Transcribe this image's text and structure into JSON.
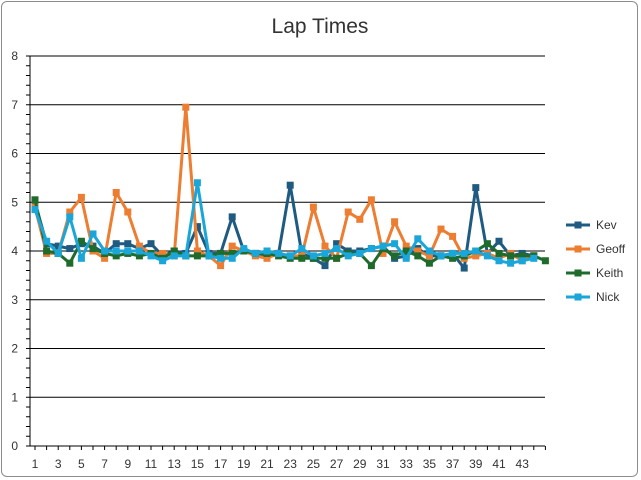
{
  "chart_data": {
    "type": "line",
    "title": "Lap Times",
    "xlabel": "",
    "ylabel": "",
    "ylim": [
      0,
      8
    ],
    "yticks": [
      0,
      1,
      2,
      3,
      4,
      5,
      6,
      7,
      8
    ],
    "xlim": [
      1,
      45
    ],
    "xtick_labels": [
      1,
      3,
      5,
      7,
      9,
      11,
      13,
      15,
      17,
      19,
      21,
      23,
      25,
      27,
      29,
      31,
      33,
      35,
      37,
      39,
      41,
      43
    ],
    "grid": "horizontal",
    "legend_position": "right",
    "series": [
      {
        "name": "Kev",
        "color": "#1f5a80",
        "x": [
          1,
          2,
          3,
          4,
          5,
          6,
          7,
          8,
          9,
          10,
          11,
          12,
          13,
          14,
          15,
          16,
          17,
          18,
          19,
          20,
          21,
          22,
          23,
          24,
          25,
          26,
          27,
          28,
          29,
          30,
          31,
          32,
          33,
          34,
          35,
          36,
          37,
          38,
          39,
          40,
          41,
          42,
          43,
          44
        ],
        "values": [
          5.0,
          4.15,
          4.1,
          4.05,
          4.15,
          4.1,
          3.95,
          4.15,
          4.15,
          4.05,
          4.15,
          3.9,
          4.0,
          3.95,
          4.5,
          3.95,
          3.95,
          4.7,
          4.0,
          3.95,
          3.9,
          3.95,
          5.35,
          3.95,
          3.85,
          3.7,
          4.15,
          4.0,
          4.0,
          4.05,
          4.1,
          3.85,
          3.9,
          4.05,
          3.9,
          3.9,
          3.95,
          3.65,
          5.3,
          3.95,
          4.2,
          3.9,
          3.95,
          3.9
        ]
      },
      {
        "name": "Geoff",
        "color": "#ed7d31",
        "x": [
          1,
          2,
          3,
          4,
          5,
          6,
          7,
          8,
          9,
          10,
          11,
          12,
          13,
          14,
          15,
          16,
          17,
          18,
          19,
          20,
          21,
          22,
          23,
          24,
          25,
          26,
          27,
          28,
          29,
          30,
          31,
          32,
          33,
          34,
          35,
          36,
          37,
          38,
          39,
          40,
          41,
          42,
          43,
          44
        ],
        "values": [
          4.9,
          3.95,
          3.95,
          4.8,
          5.1,
          4.0,
          3.85,
          5.2,
          4.8,
          4.1,
          3.95,
          3.95,
          3.9,
          6.95,
          4.0,
          3.9,
          3.7,
          4.1,
          4.0,
          3.9,
          3.85,
          3.95,
          3.9,
          3.9,
          4.9,
          4.1,
          3.85,
          4.8,
          4.65,
          5.05,
          3.95,
          4.6,
          4.1,
          4.0,
          3.9,
          4.45,
          4.3,
          3.85,
          3.9,
          3.95,
          3.85,
          3.95,
          3.8,
          3.9
        ]
      },
      {
        "name": "Keith",
        "color": "#1e6b2c",
        "x": [
          1,
          2,
          3,
          4,
          5,
          6,
          7,
          8,
          9,
          10,
          11,
          12,
          13,
          14,
          15,
          16,
          17,
          18,
          19,
          20,
          21,
          22,
          23,
          24,
          25,
          26,
          27,
          28,
          29,
          30,
          31,
          32,
          33,
          34,
          35,
          36,
          37,
          38,
          39,
          40,
          41,
          42,
          43,
          44,
          45
        ],
        "values": [
          5.05,
          4.0,
          3.95,
          3.75,
          4.2,
          4.05,
          3.95,
          3.9,
          3.95,
          3.9,
          3.95,
          3.85,
          4.0,
          3.9,
          3.9,
          3.9,
          3.95,
          3.95,
          4.0,
          3.95,
          3.95,
          3.9,
          3.85,
          3.85,
          3.85,
          3.85,
          3.85,
          3.95,
          3.95,
          3.7,
          4.05,
          3.9,
          4.0,
          3.9,
          3.75,
          3.9,
          3.85,
          3.9,
          4.0,
          4.15,
          3.95,
          3.9,
          3.9,
          3.9,
          3.8
        ]
      },
      {
        "name": "Nick",
        "color": "#1aa6d8",
        "x": [
          1,
          2,
          3,
          4,
          5,
          6,
          7,
          8,
          9,
          10,
          11,
          12,
          13,
          14,
          15,
          16,
          17,
          18,
          19,
          20,
          21,
          22,
          23,
          24,
          25,
          26,
          27,
          28,
          29,
          30,
          31,
          32,
          33,
          34,
          35,
          36,
          37,
          38,
          39,
          40,
          41,
          42,
          43,
          44
        ],
        "values": [
          4.85,
          4.2,
          3.95,
          4.7,
          3.85,
          4.35,
          4.0,
          4.0,
          4.0,
          4.0,
          3.9,
          3.8,
          3.9,
          3.9,
          5.4,
          3.9,
          3.85,
          3.85,
          4.05,
          3.95,
          4.0,
          3.95,
          3.9,
          4.05,
          3.9,
          3.95,
          4.05,
          3.9,
          3.95,
          4.05,
          4.1,
          4.15,
          3.85,
          4.25,
          4.0,
          3.9,
          3.95,
          3.95,
          4.0,
          3.9,
          3.8,
          3.75,
          3.8,
          3.85
        ]
      }
    ]
  }
}
